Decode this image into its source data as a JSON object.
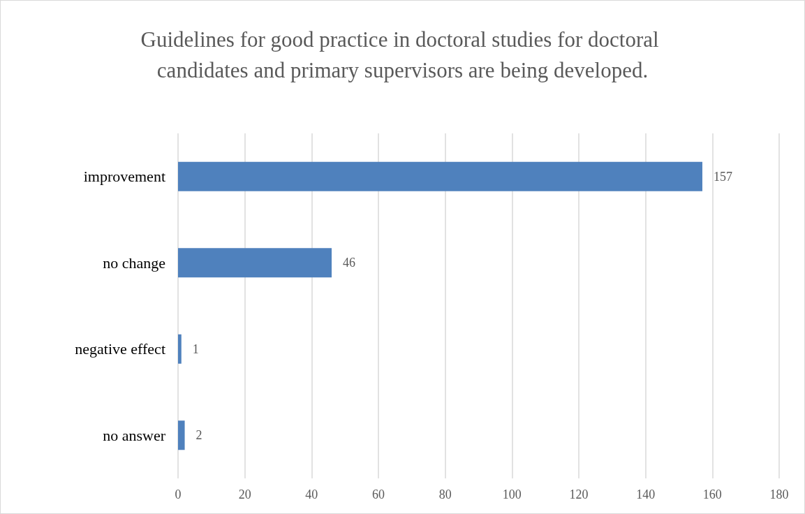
{
  "chart_data": {
    "type": "bar",
    "orientation": "horizontal",
    "title": "Guidelines for good practice in doctoral studies for doctoral candidates and primary supervisors are being developed.",
    "categories": [
      "improvement",
      "no change",
      "negative effect",
      "no answer"
    ],
    "values": [
      157,
      46,
      1,
      2
    ],
    "color": "#4f81bd",
    "xlim": [
      0,
      180
    ],
    "xticks": [
      0,
      20,
      40,
      60,
      80,
      100,
      120,
      140,
      160,
      180
    ],
    "grid": "x",
    "data_labels": true
  }
}
